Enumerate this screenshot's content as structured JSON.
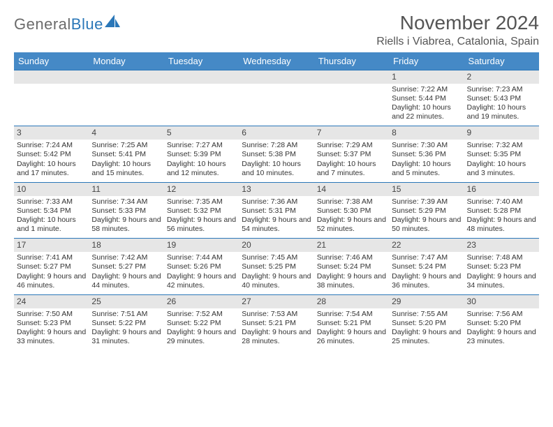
{
  "brand": {
    "name1": "General",
    "name2": "Blue"
  },
  "title": "November 2024",
  "location": "Riells i Viabrea, Catalonia, Spain",
  "colors": {
    "header_bg": "#4589c6",
    "header_text": "#ffffff",
    "daynum_bg": "#e6e6e6",
    "rule": "#2a77b8",
    "text": "#333333",
    "title": "#555555",
    "logo_gray": "#6b6b6b",
    "logo_blue": "#2a77b8",
    "background": "#ffffff"
  },
  "fonts": {
    "title_pt": 28,
    "location_pt": 16,
    "header_pt": 13,
    "daynum_pt": 12,
    "body_pt": 10.5
  },
  "dayNames": [
    "Sunday",
    "Monday",
    "Tuesday",
    "Wednesday",
    "Thursday",
    "Friday",
    "Saturday"
  ],
  "weeks": [
    [
      null,
      null,
      null,
      null,
      null,
      {
        "n": "1",
        "sunrise": "7:22 AM",
        "sunset": "5:44 PM",
        "daylight": "10 hours and 22 minutes."
      },
      {
        "n": "2",
        "sunrise": "7:23 AM",
        "sunset": "5:43 PM",
        "daylight": "10 hours and 19 minutes."
      }
    ],
    [
      {
        "n": "3",
        "sunrise": "7:24 AM",
        "sunset": "5:42 PM",
        "daylight": "10 hours and 17 minutes."
      },
      {
        "n": "4",
        "sunrise": "7:25 AM",
        "sunset": "5:41 PM",
        "daylight": "10 hours and 15 minutes."
      },
      {
        "n": "5",
        "sunrise": "7:27 AM",
        "sunset": "5:39 PM",
        "daylight": "10 hours and 12 minutes."
      },
      {
        "n": "6",
        "sunrise": "7:28 AM",
        "sunset": "5:38 PM",
        "daylight": "10 hours and 10 minutes."
      },
      {
        "n": "7",
        "sunrise": "7:29 AM",
        "sunset": "5:37 PM",
        "daylight": "10 hours and 7 minutes."
      },
      {
        "n": "8",
        "sunrise": "7:30 AM",
        "sunset": "5:36 PM",
        "daylight": "10 hours and 5 minutes."
      },
      {
        "n": "9",
        "sunrise": "7:32 AM",
        "sunset": "5:35 PM",
        "daylight": "10 hours and 3 minutes."
      }
    ],
    [
      {
        "n": "10",
        "sunrise": "7:33 AM",
        "sunset": "5:34 PM",
        "daylight": "10 hours and 1 minute."
      },
      {
        "n": "11",
        "sunrise": "7:34 AM",
        "sunset": "5:33 PM",
        "daylight": "9 hours and 58 minutes."
      },
      {
        "n": "12",
        "sunrise": "7:35 AM",
        "sunset": "5:32 PM",
        "daylight": "9 hours and 56 minutes."
      },
      {
        "n": "13",
        "sunrise": "7:36 AM",
        "sunset": "5:31 PM",
        "daylight": "9 hours and 54 minutes."
      },
      {
        "n": "14",
        "sunrise": "7:38 AM",
        "sunset": "5:30 PM",
        "daylight": "9 hours and 52 minutes."
      },
      {
        "n": "15",
        "sunrise": "7:39 AM",
        "sunset": "5:29 PM",
        "daylight": "9 hours and 50 minutes."
      },
      {
        "n": "16",
        "sunrise": "7:40 AM",
        "sunset": "5:28 PM",
        "daylight": "9 hours and 48 minutes."
      }
    ],
    [
      {
        "n": "17",
        "sunrise": "7:41 AM",
        "sunset": "5:27 PM",
        "daylight": "9 hours and 46 minutes."
      },
      {
        "n": "18",
        "sunrise": "7:42 AM",
        "sunset": "5:27 PM",
        "daylight": "9 hours and 44 minutes."
      },
      {
        "n": "19",
        "sunrise": "7:44 AM",
        "sunset": "5:26 PM",
        "daylight": "9 hours and 42 minutes."
      },
      {
        "n": "20",
        "sunrise": "7:45 AM",
        "sunset": "5:25 PM",
        "daylight": "9 hours and 40 minutes."
      },
      {
        "n": "21",
        "sunrise": "7:46 AM",
        "sunset": "5:24 PM",
        "daylight": "9 hours and 38 minutes."
      },
      {
        "n": "22",
        "sunrise": "7:47 AM",
        "sunset": "5:24 PM",
        "daylight": "9 hours and 36 minutes."
      },
      {
        "n": "23",
        "sunrise": "7:48 AM",
        "sunset": "5:23 PM",
        "daylight": "9 hours and 34 minutes."
      }
    ],
    [
      {
        "n": "24",
        "sunrise": "7:50 AM",
        "sunset": "5:23 PM",
        "daylight": "9 hours and 33 minutes."
      },
      {
        "n": "25",
        "sunrise": "7:51 AM",
        "sunset": "5:22 PM",
        "daylight": "9 hours and 31 minutes."
      },
      {
        "n": "26",
        "sunrise": "7:52 AM",
        "sunset": "5:22 PM",
        "daylight": "9 hours and 29 minutes."
      },
      {
        "n": "27",
        "sunrise": "7:53 AM",
        "sunset": "5:21 PM",
        "daylight": "9 hours and 28 minutes."
      },
      {
        "n": "28",
        "sunrise": "7:54 AM",
        "sunset": "5:21 PM",
        "daylight": "9 hours and 26 minutes."
      },
      {
        "n": "29",
        "sunrise": "7:55 AM",
        "sunset": "5:20 PM",
        "daylight": "9 hours and 25 minutes."
      },
      {
        "n": "30",
        "sunrise": "7:56 AM",
        "sunset": "5:20 PM",
        "daylight": "9 hours and 23 minutes."
      }
    ]
  ],
  "labels": {
    "sunrise": "Sunrise:",
    "sunset": "Sunset:",
    "daylight": "Daylight:"
  }
}
